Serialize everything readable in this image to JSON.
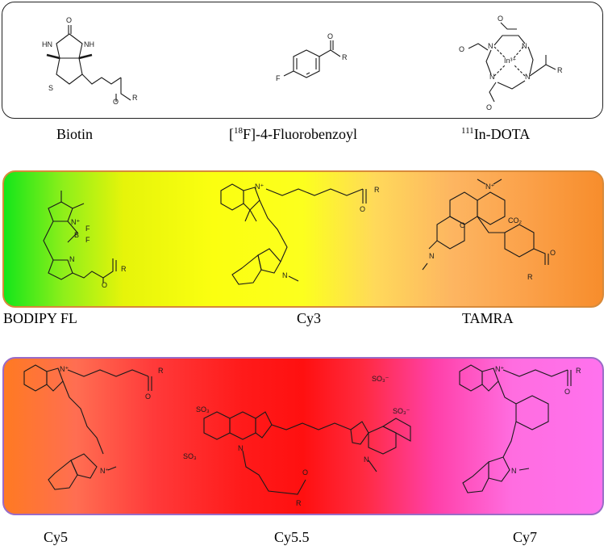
{
  "labels": {
    "biotin": "Biotin",
    "fluorobenzoyl_prefix": "[",
    "fluorobenzoyl_sup": "18",
    "fluorobenzoyl_suffix": "F]-4-Fluorobenzoyl",
    "dota_sup": "111",
    "dota_suffix": "In-DOTA",
    "bodipy": "BODIPY FL",
    "cy3": "Cy3",
    "tamra": "TAMRA",
    "cy5": "Cy5",
    "cy55": "Cy5.5",
    "cy7": "Cy7"
  },
  "atoms": {
    "O": "O",
    "HN": "HN",
    "NH": "NH",
    "S": "S",
    "R": "R",
    "F": "F",
    "N": "N",
    "N_plus": "N⁺",
    "B": "B",
    "In": "In³⁺",
    "CO2": "CO₂",
    "SO3": "SO₃⁻",
    "SO3H": "SO₃"
  },
  "colors": {
    "mid_border": "#d78a3a",
    "bot_border": "#9a6bc7"
  }
}
